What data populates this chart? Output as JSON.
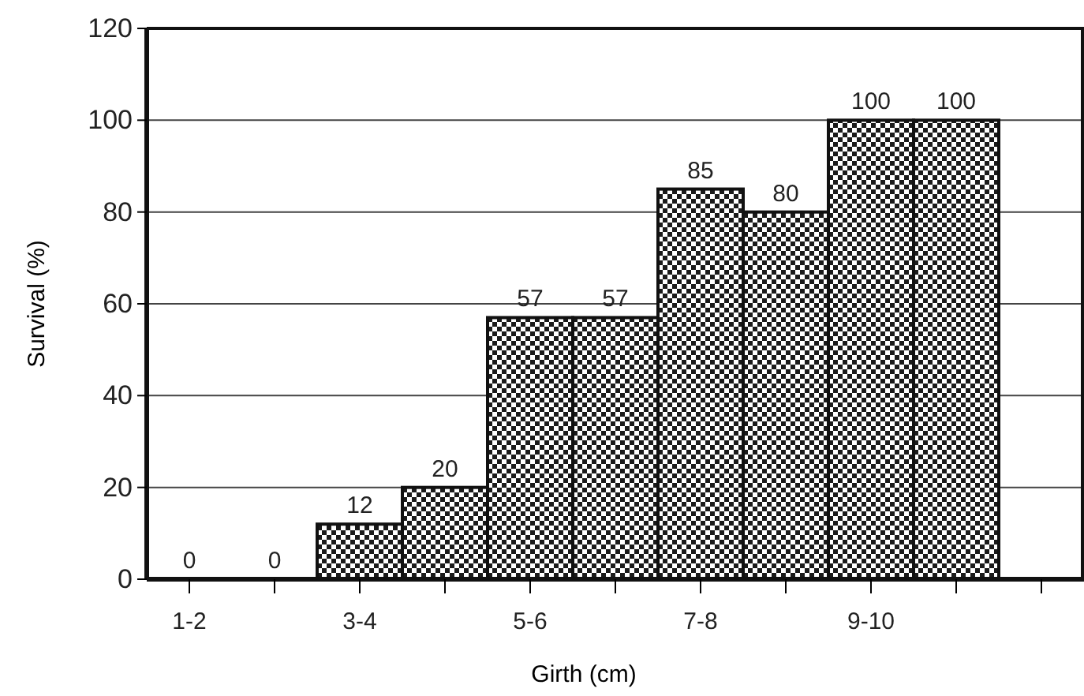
{
  "chart_data": {
    "type": "bar",
    "xlabel": "Girth (cm)",
    "ylabel": "Survival (%)",
    "categories": [
      "1-2",
      null,
      "3-4",
      null,
      "5-6",
      null,
      "7-8",
      null,
      "9-10",
      null,
      null
    ],
    "values": [
      0,
      0,
      12,
      20,
      57,
      57,
      85,
      80,
      100,
      100,
      null
    ],
    "color": "#1a1a1a",
    "ylim": [
      0,
      120
    ],
    "yticks": [
      0,
      20,
      40,
      60,
      80,
      100,
      120
    ],
    "grid": "y",
    "data_labels": true
  }
}
